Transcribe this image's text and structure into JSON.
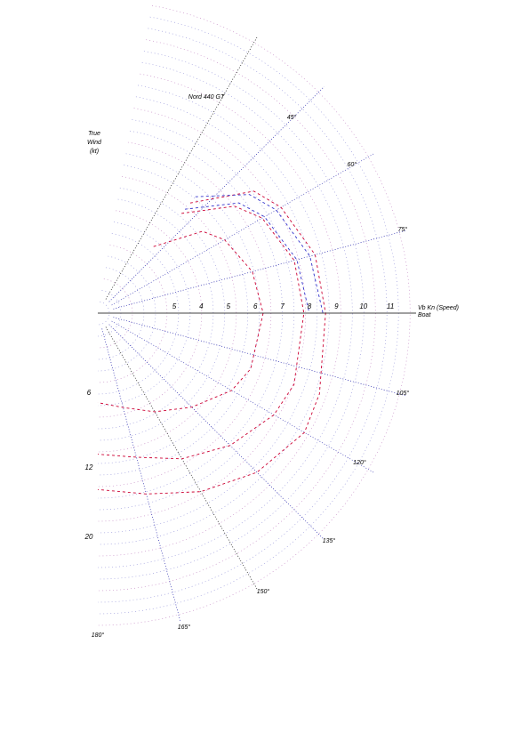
{
  "chart_data": {
    "type": "polar",
    "title": "Nord 440 GT",
    "top_left_legend": [
      "True",
      "Wind",
      "(kt)"
    ],
    "x_axis_label": [
      "Vb Kn (Speed)",
      "Boat"
    ],
    "speed_ticks": [
      5,
      4,
      5,
      6,
      7,
      8,
      9,
      10,
      11
    ],
    "angle_labels": [
      "45°",
      "60°",
      "75°",
      "105°",
      "120°",
      "135°",
      "150°",
      "165°",
      "180°"
    ],
    "wind_speed_labels": [
      "6",
      "12",
      "20"
    ],
    "series": [
      {
        "name": "6",
        "color": "#cc0033",
        "points": [
          [
            40,
            3.2
          ],
          [
            52,
            4.9
          ],
          [
            60,
            5.4
          ],
          [
            75,
            5.9
          ],
          [
            90,
            6.1
          ],
          [
            110,
            6.0
          ],
          [
            120,
            5.7
          ],
          [
            135,
            4.9
          ],
          [
            150,
            4.2
          ],
          [
            165,
            3.6
          ],
          [
            180,
            3.3
          ]
        ]
      },
      {
        "name": "12",
        "color": "#cc0033",
        "points": [
          [
            40,
            4.8
          ],
          [
            52,
            6.4
          ],
          [
            60,
            7.0
          ],
          [
            75,
            7.5
          ],
          [
            90,
            7.6
          ],
          [
            110,
            7.7
          ],
          [
            120,
            7.5
          ],
          [
            135,
            6.9
          ],
          [
            150,
            6.2
          ],
          [
            165,
            5.5
          ],
          [
            180,
            5.2
          ]
        ]
      },
      {
        "name": "20",
        "color": "#cc0033",
        "points": [
          [
            40,
            5.3
          ],
          [
            52,
            7.3
          ],
          [
            60,
            7.8
          ],
          [
            75,
            8.3
          ],
          [
            90,
            8.4
          ],
          [
            110,
            8.7
          ],
          [
            120,
            8.8
          ],
          [
            135,
            8.3
          ],
          [
            150,
            7.6
          ],
          [
            165,
            6.9
          ],
          [
            180,
            6.5
          ]
        ]
      },
      {
        "name": "",
        "color": "#3333cc",
        "points": [
          [
            40,
            5.0
          ],
          [
            52,
            6.6
          ],
          [
            60,
            7.1
          ],
          [
            75,
            7.6
          ],
          [
            90,
            7.8
          ]
        ]
      },
      {
        "name": "",
        "color": "#3333cc",
        "points": [
          [
            40,
            5.6
          ],
          [
            52,
            7.1
          ],
          [
            60,
            7.6
          ],
          [
            75,
            8.1
          ],
          [
            90,
            8.3
          ]
        ]
      }
    ],
    "rlim": [
      0,
      12
    ],
    "grid": true
  }
}
